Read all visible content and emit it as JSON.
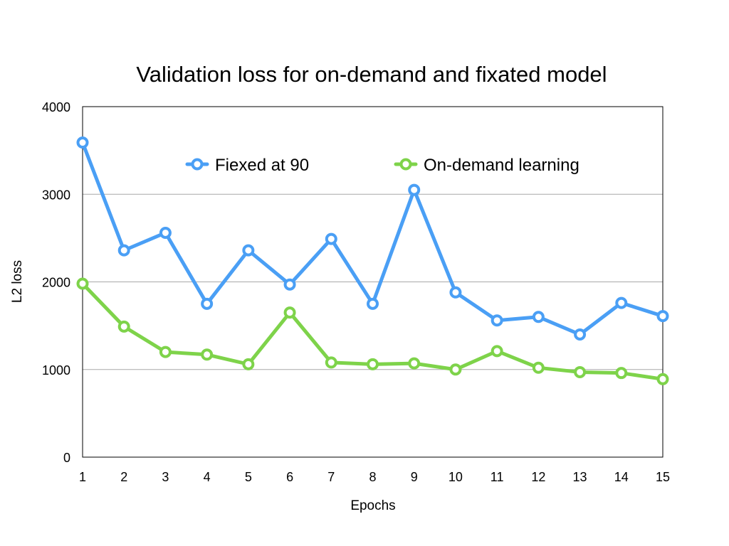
{
  "chart_data": {
    "type": "line",
    "title": "Validation loss for on-demand and fixated model",
    "xlabel": "Epochs",
    "ylabel": "L2 loss",
    "x": [
      1,
      2,
      3,
      4,
      5,
      6,
      7,
      8,
      9,
      10,
      11,
      12,
      13,
      14,
      15
    ],
    "ylim": [
      0,
      4000
    ],
    "yticks": [
      0,
      1000,
      2000,
      3000,
      4000
    ],
    "grid": true,
    "legend_position": "top",
    "series": [
      {
        "name": "Fiexed at 90",
        "color": "#4a9ff5",
        "values": [
          3590,
          2360,
          2560,
          1750,
          2360,
          1970,
          2490,
          1750,
          3050,
          1880,
          1560,
          1600,
          1400,
          1760,
          1610
        ]
      },
      {
        "name": "On-demand learning",
        "color": "#7ed34a",
        "values": [
          1980,
          1490,
          1200,
          1170,
          1060,
          1650,
          1080,
          1060,
          1070,
          1000,
          1210,
          1020,
          970,
          960,
          890
        ]
      }
    ]
  }
}
